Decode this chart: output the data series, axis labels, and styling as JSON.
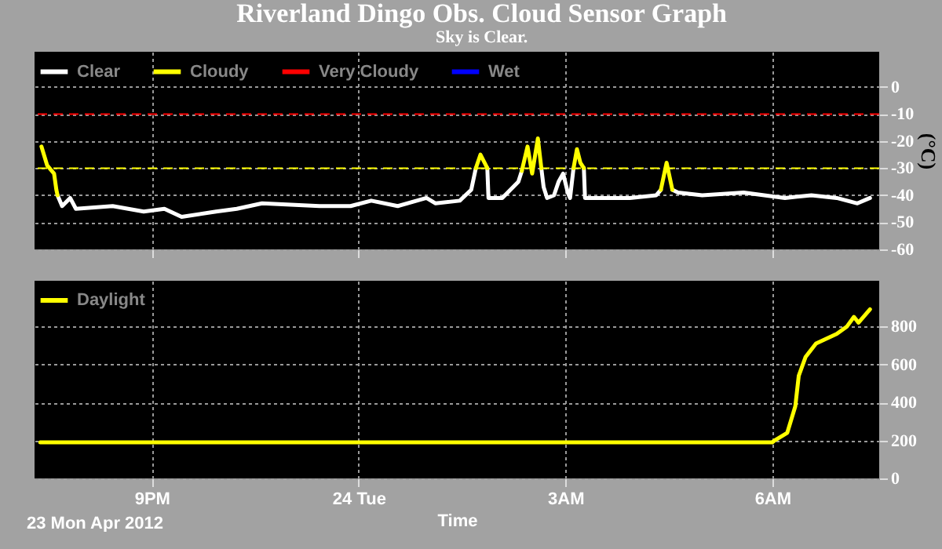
{
  "chart_data": [
    {
      "type": "line",
      "title": "Riverland Dingo Obs. Cloud Sensor Graph",
      "subtitle": "Sky is Clear.",
      "ylabel": "(°C)",
      "xlim": [
        "2012-04-23T19:18",
        "2012-04-24T07:33"
      ],
      "xticks": [
        "2012-04-23T21:00",
        "2012-04-24T00:00",
        "2012-04-24T03:00",
        "2012-04-24T06:00"
      ],
      "ylim": [
        -60,
        13
      ],
      "yticks": [
        -60,
        -50,
        -40,
        -30,
        -20,
        -10,
        0
      ],
      "grid": true,
      "legend": "top left",
      "tick_labels": "y",
      "series": [
        {
          "name": "Clear",
          "color": "#ffffff",
          "x": [
            "2012-04-23T19:38",
            "2012-04-23T19:42",
            "2012-04-23T19:49",
            "2012-04-23T19:54",
            "2012-04-23T20:26",
            "2012-04-23T20:53",
            "2012-04-23T21:11",
            "2012-04-23T21:26",
            "2012-04-23T21:56",
            "2012-04-23T22:14",
            "2012-04-23T22:36",
            "2012-04-23T23:26",
            "2012-04-23T23:53",
            "2012-04-24T00:11",
            "2012-04-24T00:34",
            "2012-04-24T00:59",
            "2012-04-24T01:07",
            "2012-04-24T01:28",
            "2012-04-24T01:38",
            "2012-04-24T01:42",
            "2012-04-24T01:46",
            "2012-04-24T01:52",
            "2012-04-24T01:53",
            "2012-04-24T02:05",
            "2012-04-24T02:19",
            "2012-04-24T02:22",
            "2012-04-24T02:30",
            "2012-04-24T02:39",
            "2012-04-24T02:41",
            "2012-04-24T02:44",
            "2012-04-24T02:50",
            "2012-04-24T02:54",
            "2012-04-24T02:58",
            "2012-04-24T03:02",
            "2012-04-24T03:04",
            "2012-04-24T03:07",
            "2012-04-24T03:10",
            "2012-04-24T03:16",
            "2012-04-24T03:17",
            "2012-04-24T03:29",
            "2012-04-24T03:56",
            "2012-04-24T04:19",
            "2012-04-24T04:23",
            "2012-04-24T04:28",
            "2012-04-24T04:33",
            "2012-04-24T04:38",
            "2012-04-24T04:59",
            "2012-04-24T05:35",
            "2012-04-24T05:53",
            "2012-04-24T06:11",
            "2012-04-24T06:34",
            "2012-04-24T06:56",
            "2012-04-24T07:14",
            "2012-04-24T07:25"
          ],
          "values": [
            -40,
            -44,
            -41,
            -45,
            -44,
            -46,
            -45,
            -48,
            -46,
            -45,
            -43,
            -44,
            -44,
            -42,
            -44,
            -41,
            -43,
            -42,
            -38,
            -30,
            null,
            -30,
            -41,
            -41,
            -35,
            -31,
            null,
            -30,
            -37,
            -41,
            -40,
            -35,
            -32,
            -39,
            -41,
            -30,
            null,
            -30,
            -41,
            -41,
            -41,
            -40,
            -38,
            null,
            -38,
            -39,
            -40,
            -39,
            -40,
            -41,
            -40,
            -41,
            -43,
            -41
          ]
        },
        {
          "name": "Cloudy",
          "color": "#ffff00",
          "x": [
            "2012-04-23T19:24",
            "2012-04-23T19:29",
            "2012-04-23T19:35",
            "2012-04-23T19:37",
            "2012-04-23T19:38",
            "2012-04-23T19:42",
            "2012-04-24T01:42",
            "2012-04-24T01:46",
            "2012-04-24T01:52",
            "2012-04-24T01:54",
            "2012-04-24T02:22",
            "2012-04-24T02:27",
            "2012-04-24T02:31",
            "2012-04-24T02:36",
            "2012-04-24T02:39",
            "2012-04-24T02:42",
            "2012-04-24T03:07",
            "2012-04-24T03:10",
            "2012-04-24T03:13",
            "2012-04-24T03:16",
            "2012-04-24T03:18",
            "2012-04-24T04:23",
            "2012-04-24T04:28",
            "2012-04-24T04:33"
          ],
          "values": [
            -22,
            -29,
            -32,
            -38,
            -40,
            null,
            -30,
            -25,
            -30,
            null,
            -31,
            -22,
            -32,
            -19,
            -30,
            null,
            -30,
            -23,
            -28,
            -30,
            null,
            -38,
            -28,
            -38
          ]
        },
        {
          "name": "Very Cloudy",
          "color": "#ff0000"
        },
        {
          "name": "Wet",
          "color": "#0000ff"
        }
      ],
      "ref_lines": [
        {
          "axis": "y",
          "value": -10,
          "color": "#ff0000",
          "line_style": "dashed"
        },
        {
          "axis": "y",
          "value": -30,
          "color": "#ffff00",
          "line_style": "dashed"
        }
      ]
    },
    {
      "type": "line",
      "xlabel": "Time",
      "annotations": [
        "23 Mon Apr 2012"
      ],
      "xlim": [
        "2012-04-23T19:18",
        "2012-04-24T07:33"
      ],
      "xticks": [
        {
          "value": "2012-04-23T21:00",
          "label": "9PM"
        },
        {
          "value": "2012-04-24T00:00",
          "label": "24 Tue"
        },
        {
          "value": "2012-04-24T03:00",
          "label": "3AM"
        },
        {
          "value": "2012-04-24T06:00",
          "label": "6AM"
        }
      ],
      "ylim": [
        0,
        1040
      ],
      "yticks": [
        0,
        200,
        400,
        600,
        800
      ],
      "grid": true,
      "legend": "top left",
      "series": [
        {
          "name": "Daylight",
          "color": "#ffff00",
          "x": [
            "2012-04-23T19:23",
            "2012-04-23T21:00",
            "2012-04-24T00:00",
            "2012-04-24T03:00",
            "2012-04-24T06:00",
            "2012-04-24T06:02",
            "2012-04-24T06:13",
            "2012-04-24T06:20",
            "2012-04-24T06:23",
            "2012-04-24T06:29",
            "2012-04-24T06:38",
            "2012-04-24T06:56",
            "2012-04-24T07:05",
            "2012-04-24T07:11",
            "2012-04-24T07:15",
            "2012-04-24T07:25"
          ],
          "values": [
            190,
            190,
            190,
            190,
            190,
            200,
            240,
            380,
            540,
            640,
            710,
            760,
            800,
            850,
            820,
            890
          ]
        }
      ]
    }
  ]
}
